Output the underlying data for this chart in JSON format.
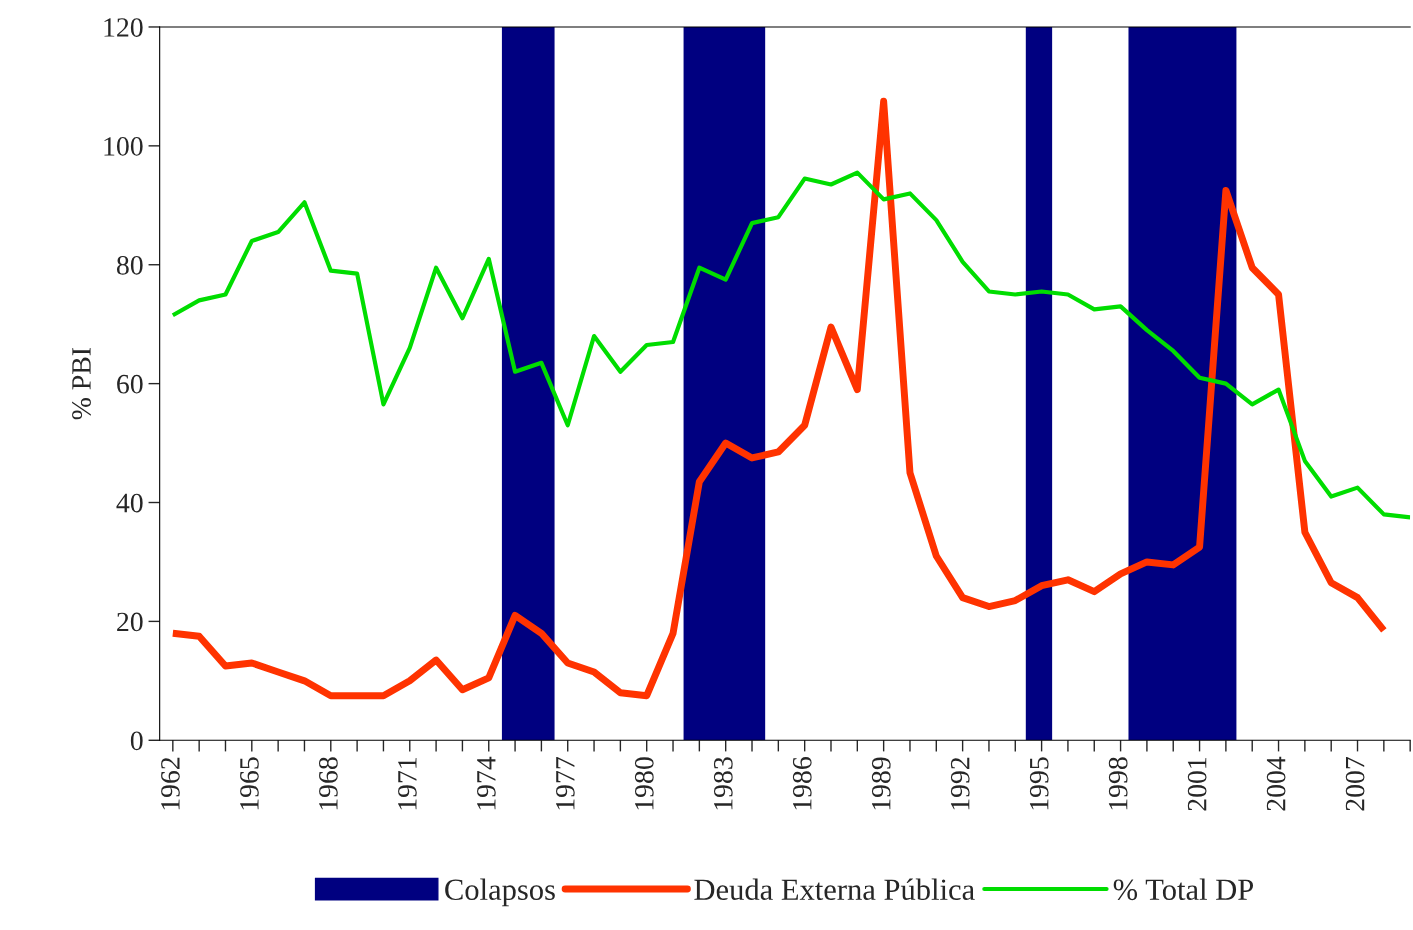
{
  "chart_data": {
    "type": "line",
    "ylabel": "% PBI",
    "x": [
      1962,
      1963,
      1964,
      1965,
      1966,
      1967,
      1968,
      1969,
      1970,
      1971,
      1972,
      1973,
      1974,
      1975,
      1976,
      1977,
      1978,
      1979,
      1980,
      1981,
      1982,
      1983,
      1984,
      1985,
      1986,
      1987,
      1988,
      1989,
      1990,
      1991,
      1992,
      1993,
      1994,
      1995,
      1996,
      1997,
      1998,
      1999,
      2000,
      2001,
      2002,
      2003,
      2004,
      2005,
      2006,
      2007,
      2008
    ],
    "series": [
      {
        "name": "Deuda Externa Pública",
        "color": "#ff3300",
        "values": [
          18,
          17.5,
          12.5,
          13,
          11.5,
          10,
          7.5,
          7.5,
          7.5,
          10,
          13.5,
          8.5,
          10.5,
          21,
          18,
          13,
          11.5,
          8,
          7.5,
          18,
          43.5,
          50,
          47.5,
          48.5,
          53,
          69.5,
          59,
          107.5,
          45,
          31,
          24,
          22.5,
          23.5,
          26,
          27,
          25,
          28,
          30,
          29.5,
          32.5,
          92.5,
          79.5,
          75,
          35,
          26.5,
          24,
          18.5
        ]
      },
      {
        "name": "% Total DP",
        "color": "#00dd00",
        "x": [
          1962,
          1963,
          1964,
          1965,
          1966,
          1967,
          1968,
          1969,
          1970,
          1971,
          1972,
          1973,
          1974,
          1975,
          1976,
          1977,
          1978,
          1979,
          1980,
          1981,
          1982,
          1983,
          1984,
          1985,
          1986,
          1987,
          1988,
          1989,
          1990,
          1991,
          1992,
          1993,
          1994,
          1995,
          1996,
          1997,
          1998,
          1999,
          2000,
          2001,
          2002,
          2003,
          2004,
          2005,
          2006,
          2007,
          2008,
          2009
        ],
        "values": [
          71.5,
          74,
          75,
          84,
          85.5,
          90.5,
          79,
          78.5,
          56.5,
          66,
          79.5,
          71,
          81,
          62,
          63.5,
          53,
          68,
          62,
          66.5,
          67,
          79.5,
          77.5,
          87,
          88,
          94.5,
          93.5,
          95.5,
          91,
          92,
          87.5,
          80.5,
          75.5,
          75,
          75.5,
          75,
          72.5,
          73,
          69,
          65.5,
          61,
          60,
          56.5,
          59,
          47,
          41,
          42.5,
          38,
          37.5
        ]
      }
    ],
    "bands": [
      {
        "axis": "x",
        "from": 1974.5,
        "to": 1976.5,
        "label": "Colapsos",
        "color": "#000080"
      },
      {
        "axis": "x",
        "from": 1981.4,
        "to": 1984.5,
        "color": "#000080"
      },
      {
        "axis": "x",
        "from": 1994.4,
        "to": 1995.4,
        "color": "#000080"
      },
      {
        "axis": "x",
        "from": 1998.3,
        "to": 2002.4,
        "color": "#000080"
      }
    ],
    "xlim": [
      1961.5,
      2009
    ],
    "xticks": [
      1962,
      {
        "value": 1963,
        "label": null
      },
      {
        "value": 1964,
        "label": null
      },
      1965,
      {
        "value": 1966,
        "label": null
      },
      {
        "value": 1967,
        "label": null
      },
      1968,
      {
        "value": 1969,
        "label": null
      },
      {
        "value": 1970,
        "label": null
      },
      1971,
      {
        "value": 1972,
        "label": null
      },
      {
        "value": 1973,
        "label": null
      },
      1974,
      {
        "value": 1975,
        "label": null
      },
      {
        "value": 1976,
        "label": null
      },
      1977,
      {
        "value": 1978,
        "label": null
      },
      {
        "value": 1979,
        "label": null
      },
      1980,
      {
        "value": 1981,
        "label": null
      },
      {
        "value": 1982,
        "label": null
      },
      1983,
      {
        "value": 1984,
        "label": null
      },
      {
        "value": 1985,
        "label": null
      },
      1986,
      {
        "value": 1987,
        "label": null
      },
      {
        "value": 1988,
        "label": null
      },
      1989,
      {
        "value": 1990,
        "label": null
      },
      {
        "value": 1991,
        "label": null
      },
      1992,
      {
        "value": 1993,
        "label": null
      },
      {
        "value": 1994,
        "label": null
      },
      1995,
      {
        "value": 1996,
        "label": null
      },
      {
        "value": 1997,
        "label": null
      },
      1998,
      {
        "value": 1999,
        "label": null
      },
      {
        "value": 2000,
        "label": null
      },
      2001,
      {
        "value": 2002,
        "label": null
      },
      {
        "value": 2003,
        "label": null
      },
      2004,
      {
        "value": 2005,
        "label": null
      },
      {
        "value": 2006,
        "label": null
      },
      2007,
      {
        "value": 2008,
        "label": null
      },
      {
        "value": 2009,
        "label": null
      }
    ],
    "ylim": [
      0,
      120
    ],
    "yticks": [
      0,
      20,
      40,
      60,
      80,
      100,
      120
    ],
    "grid": false,
    "legend": "bottom",
    "marker": "none",
    "line_style": "solid"
  }
}
